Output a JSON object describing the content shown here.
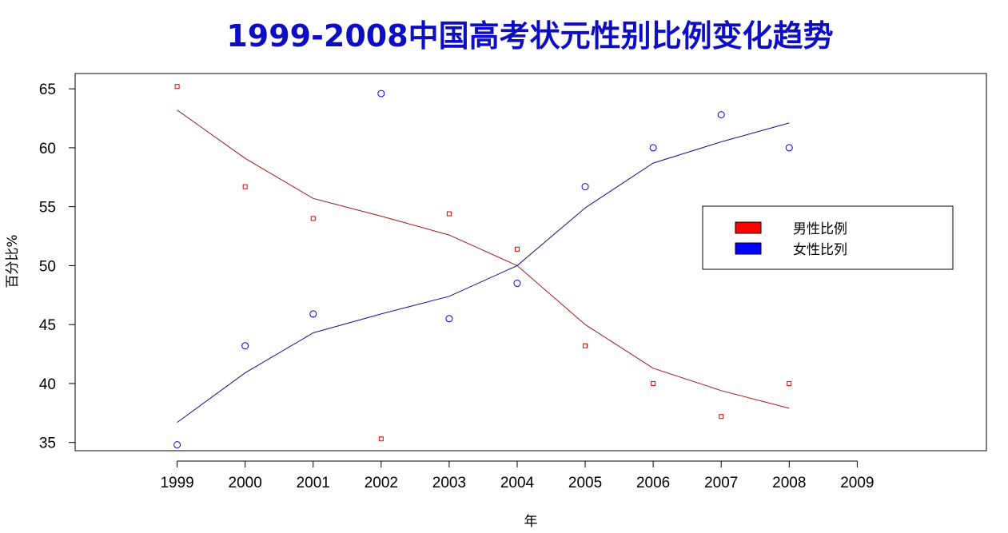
{
  "chart_data": {
    "type": "scatter",
    "title": "1999-2008中国高考状元性别比例变化趋势",
    "xlabel": "年",
    "ylabel": "百分比%",
    "x_ticks": [
      1999,
      2000,
      2001,
      2002,
      2003,
      2004,
      2005,
      2006,
      2007,
      2008,
      2009
    ],
    "y_ticks": [
      35,
      40,
      45,
      50,
      55,
      60,
      65
    ],
    "xlim": [
      1997.5,
      2010.9
    ],
    "ylim": [
      34.3,
      66.3
    ],
    "grid": false,
    "legend_position": "right",
    "series": [
      {
        "name": "男性比例",
        "color": "#e00000",
        "marker": "square",
        "x": [
          1999,
          2000,
          2001,
          2002,
          2003,
          2004,
          2005,
          2006,
          2007,
          2008
        ],
        "points": [
          65.2,
          56.7,
          54.0,
          35.3,
          54.4,
          51.4,
          43.2,
          40.0,
          37.2,
          40.0
        ],
        "smooth": [
          63.2,
          59.1,
          55.7,
          54.2,
          52.6,
          50.0,
          45.0,
          41.3,
          39.4,
          37.9
        ]
      },
      {
        "name": "女性比列",
        "color": "#0000f0",
        "marker": "circle",
        "x": [
          1999,
          2000,
          2001,
          2002,
          2003,
          2004,
          2005,
          2006,
          2007,
          2008
        ],
        "points": [
          34.8,
          43.2,
          45.9,
          64.6,
          45.5,
          48.5,
          56.7,
          60.0,
          62.8,
          60.0
        ],
        "smooth": [
          36.7,
          40.9,
          44.3,
          45.9,
          47.4,
          50.0,
          54.9,
          58.7,
          60.5,
          62.1
        ]
      }
    ],
    "colors": {
      "title": "#0d0ec2",
      "male_line": "#a01818",
      "female_line": "#10108a",
      "legend_male_fill": "#ff0000",
      "legend_female_fill": "#0000ff"
    }
  }
}
